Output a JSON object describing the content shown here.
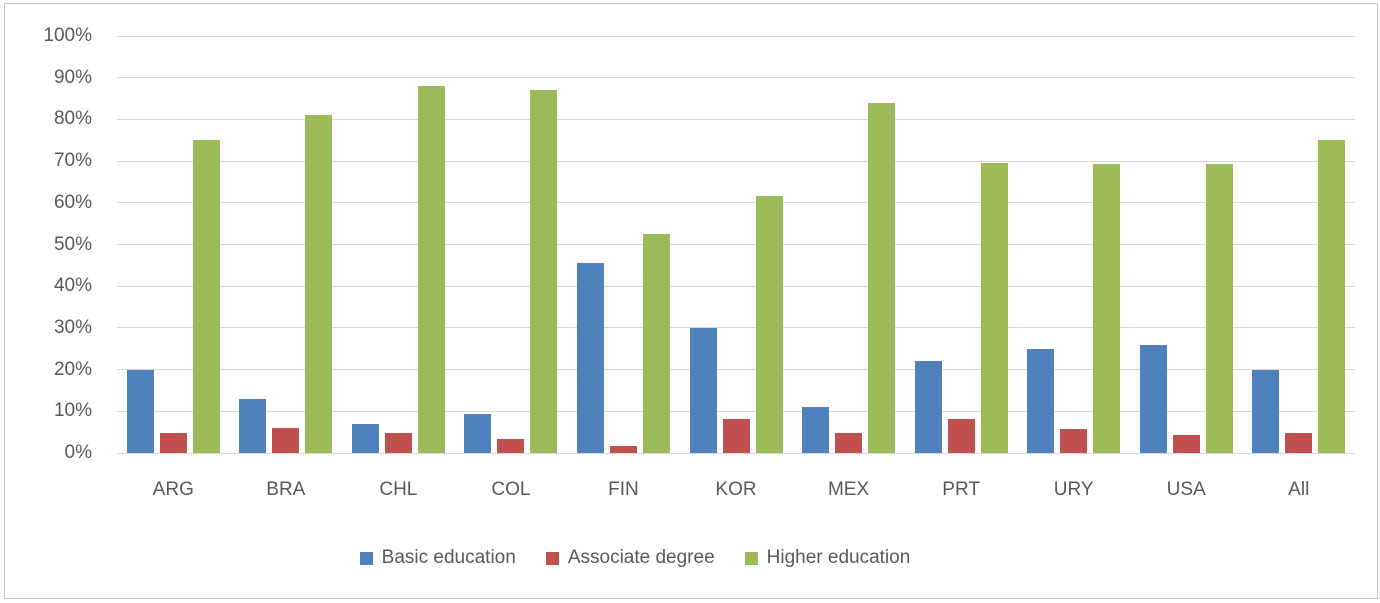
{
  "chart_data": {
    "type": "bar",
    "title": "",
    "xlabel": "",
    "ylabel": "",
    "categories": [
      "ARG",
      "BRA",
      "CHL",
      "COL",
      "FIN",
      "KOR",
      "MEX",
      "PRT",
      "URY",
      "USA",
      "All"
    ],
    "series": [
      {
        "name": "Basic education",
        "color": "#4F81BD",
        "values": [
          20,
          13,
          7,
          9.3,
          45.5,
          30,
          11,
          22,
          25,
          26,
          20
        ]
      },
      {
        "name": "Associate degree",
        "color": "#C0504D",
        "values": [
          4.8,
          6,
          4.8,
          3.4,
          1.7,
          8.2,
          4.8,
          8.2,
          5.7,
          4.3,
          4.8
        ]
      },
      {
        "name": "Higher education",
        "color": "#9BBB59",
        "values": [
          75,
          81,
          88,
          87,
          52.5,
          61.7,
          84,
          69.5,
          69.2,
          69.4,
          75
        ]
      }
    ],
    "y_axis": {
      "min": 0,
      "max": 100,
      "step": 10,
      "tick_labels": [
        "0%",
        "10%",
        "20%",
        "30%",
        "40%",
        "50%",
        "60%",
        "70%",
        "80%",
        "90%",
        "100%"
      ]
    },
    "grid": true,
    "legend_position": "bottom",
    "colors": {
      "axis_text": "#595959",
      "gridline": "#D9D9D9",
      "frame_border": "#C6C6C6",
      "background": "#FFFFFF"
    }
  }
}
